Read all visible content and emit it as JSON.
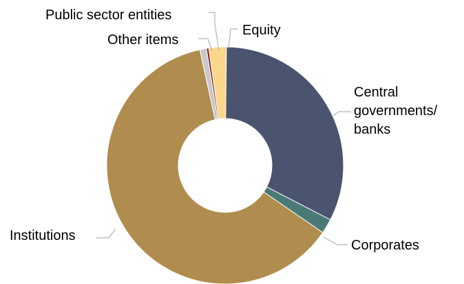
{
  "chart_data": {
    "type": "pie",
    "variant": "donut",
    "title": "",
    "legend": "none",
    "slices": [
      {
        "key": "equity",
        "label": "Equity",
        "value": 2.4,
        "color": "#FBD78B"
      },
      {
        "key": "central",
        "label_lines": [
          "Central",
          "governments/",
          "banks"
        ],
        "value": 32.4,
        "color": "#4A546E"
      },
      {
        "key": "corporates",
        "label": "Corporates",
        "value": 2.0,
        "color": "#4A7A76"
      },
      {
        "key": "institutions",
        "label": "Institutions",
        "value": 62.0,
        "color": "#B08D4E"
      },
      {
        "key": "other",
        "label": "Other items",
        "value": 0.9,
        "color": "#C8C8C8"
      },
      {
        "key": "public",
        "label": "Public sector entities",
        "value": 0.3,
        "color": "#8B1A1A"
      }
    ]
  }
}
